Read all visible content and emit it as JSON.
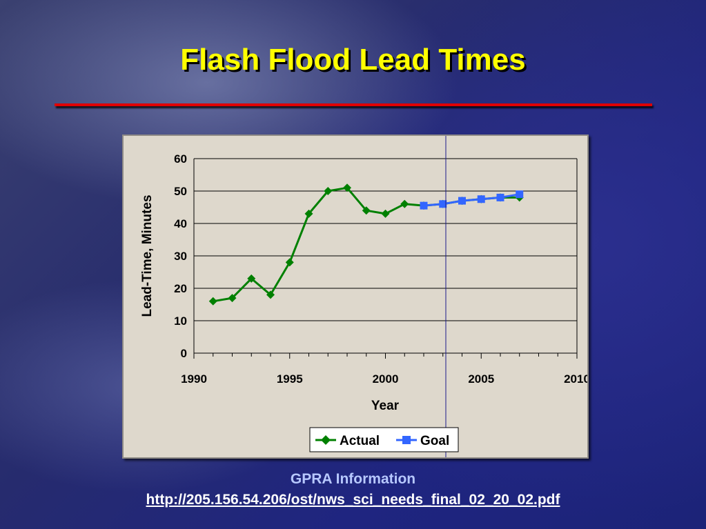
{
  "slide": {
    "title": "Flash Flood Lead Times",
    "caption": "GPRA Information",
    "link": "http://205.156.54.206/ost/nws_sci_needs_final_02_20_02.pdf"
  },
  "chart_data": {
    "type": "line",
    "xlabel": "Year",
    "ylabel": "Lead-Time, Minutes",
    "xlim": [
      1990,
      2010
    ],
    "ylim": [
      0,
      60
    ],
    "xticks": [
      1990,
      1995,
      2000,
      2005,
      2010
    ],
    "yticks": [
      0,
      10,
      20,
      30,
      40,
      50,
      60
    ],
    "grid": "horizontal",
    "legend": "bottom",
    "series": [
      {
        "name": "Actual",
        "color": "#008000",
        "marker": "diamond",
        "x": [
          1991,
          1992,
          1993,
          1994,
          1995,
          1996,
          1997,
          1998,
          1999,
          2000,
          2001,
          2002,
          2003,
          2004,
          2005,
          2006,
          2007
        ],
        "y": [
          16,
          17,
          23,
          18,
          28,
          43,
          50,
          51,
          44,
          43,
          46,
          45.5,
          46,
          47,
          47.5,
          48,
          48
        ]
      },
      {
        "name": "Goal",
        "color": "#3366ff",
        "marker": "square",
        "x": [
          2002,
          2003,
          2004,
          2005,
          2006,
          2007
        ],
        "y": [
          45.5,
          46,
          47,
          47.5,
          48,
          49
        ]
      }
    ]
  }
}
